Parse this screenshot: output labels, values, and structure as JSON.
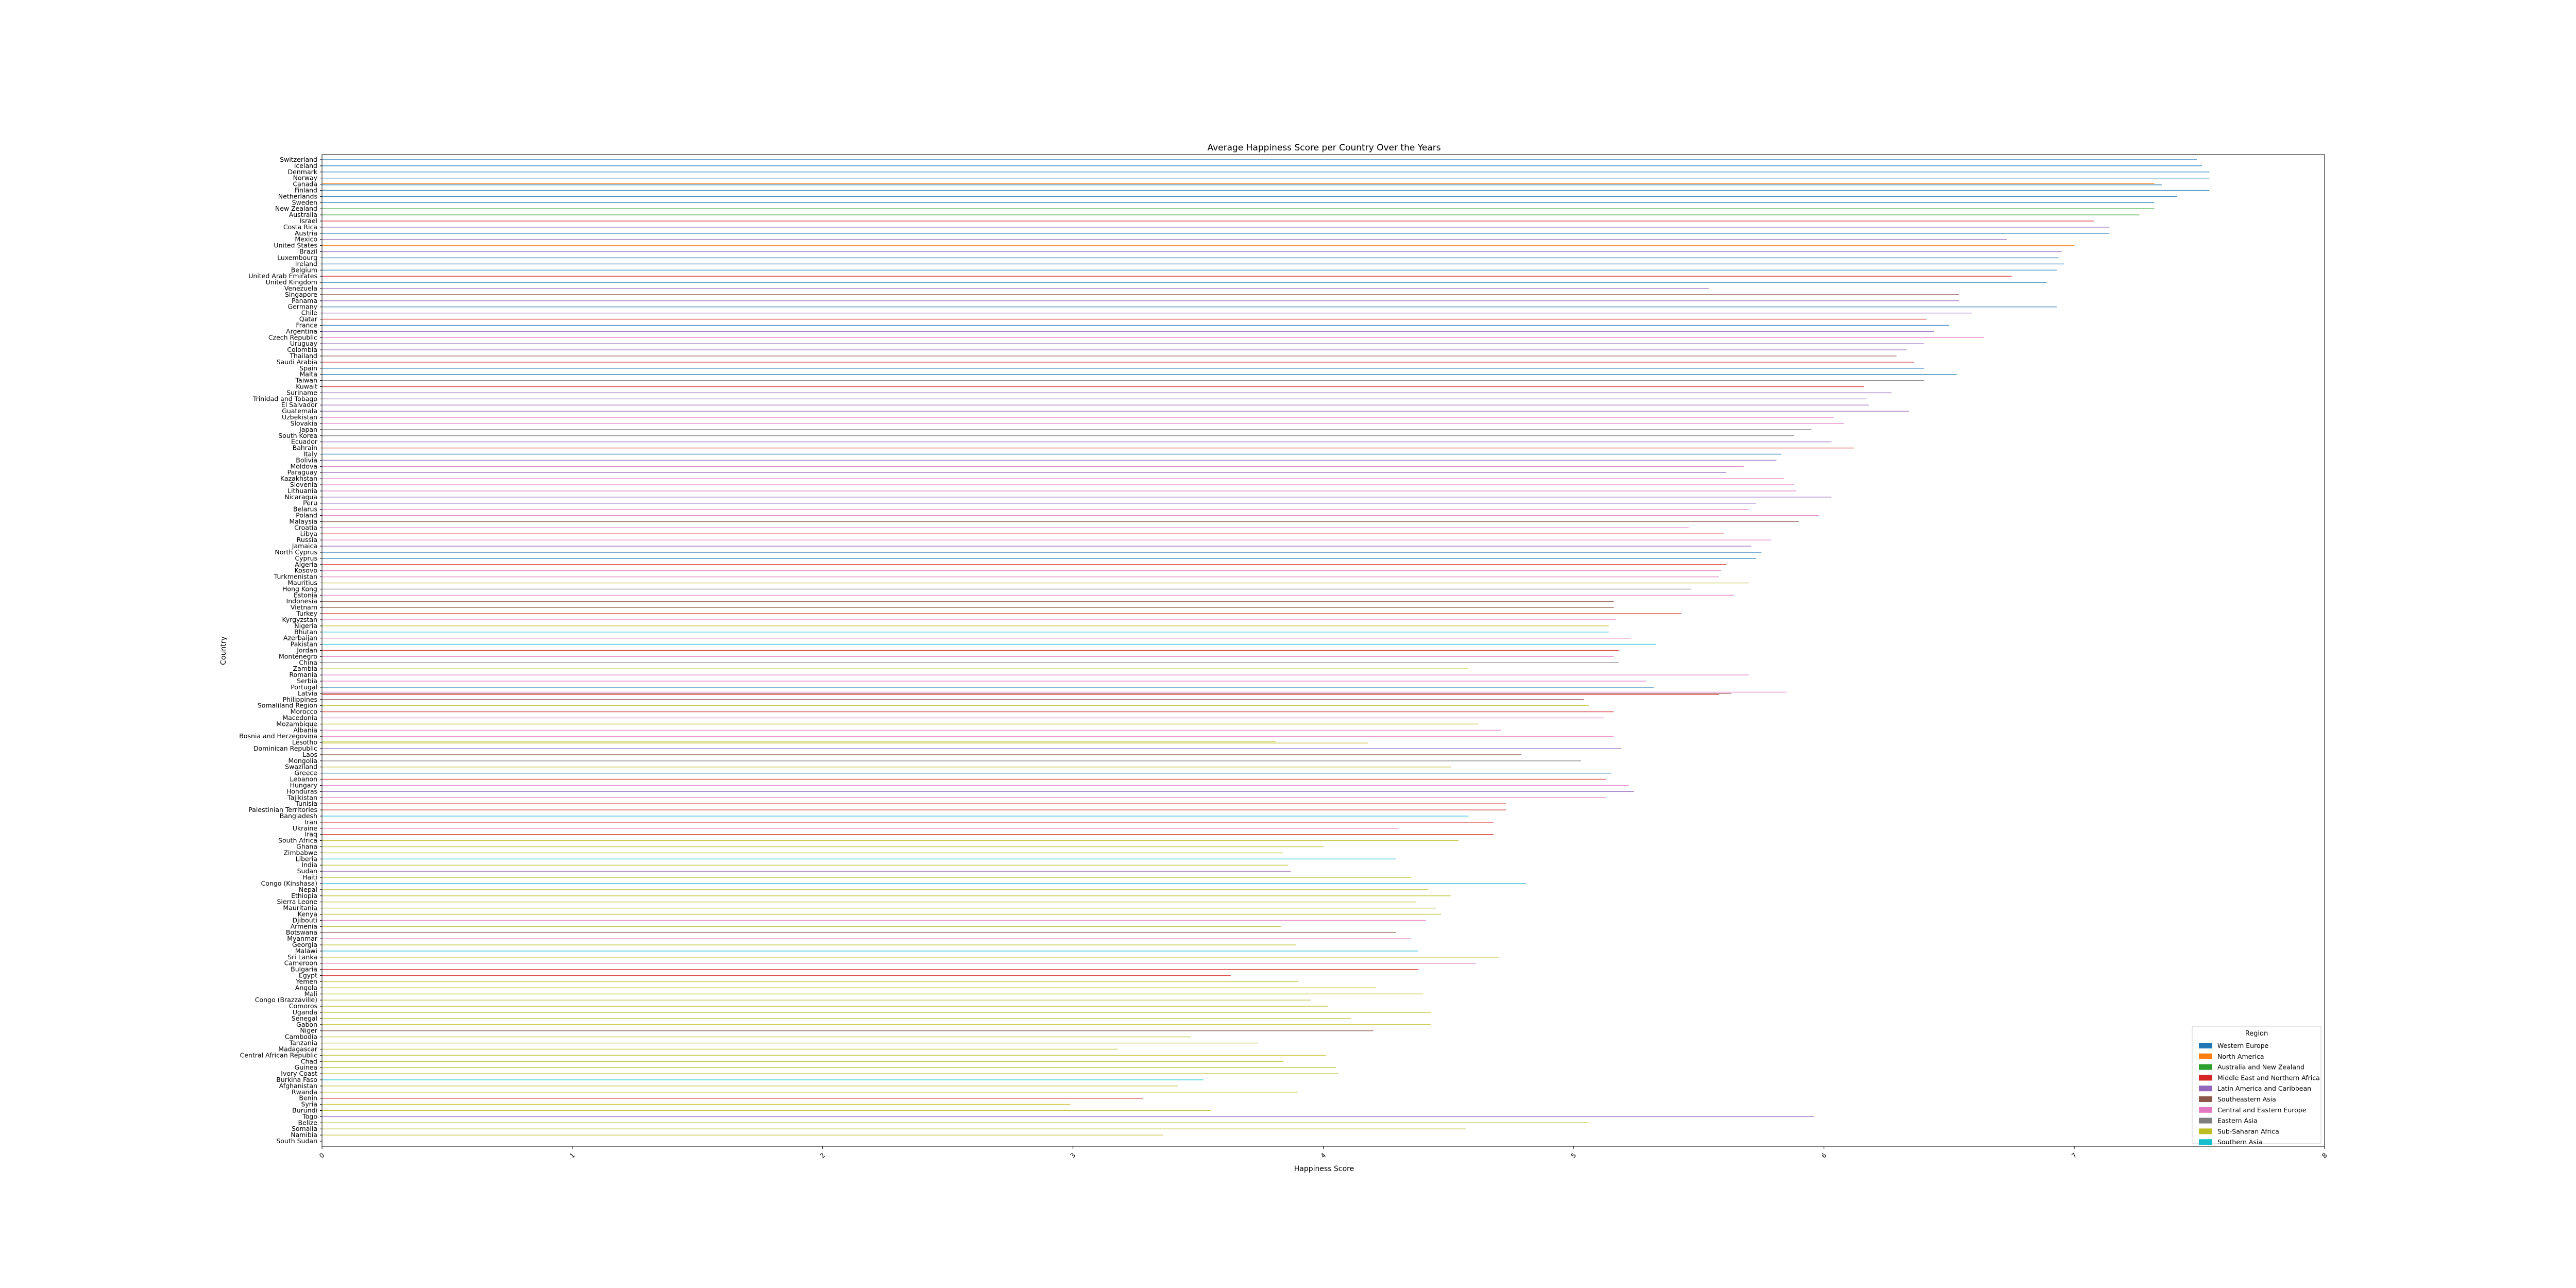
{
  "chart_data": {
    "type": "bar",
    "orientation": "horizontal",
    "title": "Average Happiness Score per Country Over the Years",
    "xlabel": "Happiness Score",
    "ylabel": "Country",
    "xlim": [
      0,
      8
    ],
    "xticks": [
      "0",
      "1",
      "2",
      "3",
      "4",
      "5",
      "6",
      "7",
      "8"
    ],
    "grid": false,
    "legend_title": "Region",
    "legend_position": "lower-right",
    "series": [
      {
        "name": "Western Europe",
        "color": "#1f77b4"
      },
      {
        "name": "North America",
        "color": "#ff7f0e"
      },
      {
        "name": "Australia and New Zealand",
        "color": "#2ca02c"
      },
      {
        "name": "Middle East and Northern Africa",
        "color": "#d62728"
      },
      {
        "name": "Latin America and Caribbean",
        "color": "#9467bd"
      },
      {
        "name": "Southeastern Asia",
        "color": "#8c564b"
      },
      {
        "name": "Central and Eastern Europe",
        "color": "#e377c2"
      },
      {
        "name": "Eastern Asia",
        "color": "#7f7f7f"
      },
      {
        "name": "Sub-Saharan Africa",
        "color": "#bcbd22"
      },
      {
        "name": "Southern Asia",
        "color": "#17becf"
      }
    ],
    "categories": [
      "Switzerland",
      "Iceland",
      "Denmark",
      "Norway",
      "Canada",
      "Finland",
      "Netherlands",
      "Sweden",
      "New Zealand",
      "Australia",
      "Israel",
      "Costa Rica",
      "Austria",
      "Mexico",
      "United States",
      "Brazil",
      "Luxembourg",
      "Ireland",
      "Belgium",
      "United Arab Emirates",
      "United Kingdom",
      "Venezuela",
      "Singapore",
      "Panama",
      "Germany",
      "Chile",
      "Qatar",
      "France",
      "Argentina",
      "Czech Republic",
      "Uruguay",
      "Colombia",
      "Thailand",
      "Saudi Arabia",
      "Spain",
      "Malta",
      "Taiwan",
      "Kuwait",
      "Suriname",
      "Trinidad and Tobago",
      "El Salvador",
      "Guatemala",
      "Uzbekistan",
      "Slovakia",
      "Japan",
      "South Korea",
      "Ecuador",
      "Bahrain",
      "Italy",
      "Bolivia",
      "Moldova",
      "Paraguay",
      "Kazakhstan",
      "Slovenia",
      "Lithuania",
      "Nicaragua",
      "Peru",
      "Belarus",
      "Poland",
      "Malaysia",
      "Croatia",
      "Libya",
      "Russia",
      "Jamaica",
      "North Cyprus",
      "Cyprus",
      "Algeria",
      "Kosovo",
      "Turkmenistan",
      "Mauritius",
      "Hong Kong",
      "Estonia",
      "Indonesia",
      "Vietnam",
      "Turkey",
      "Kyrgyzstan",
      "Nigeria",
      "Bhutan",
      "Azerbaijan",
      "Pakistan",
      "Jordan",
      "Montenegro",
      "China",
      "Zambia",
      "Romania",
      "Serbia",
      "Portugal",
      "Latvia",
      "Philippines",
      "Somaliland Region",
      "Morocco",
      "Macedonia",
      "Mozambique",
      "Albania",
      "Bosnia and Herzegovina",
      "Lesotho",
      "Dominican Republic",
      "Laos",
      "Mongolia",
      "Swaziland",
      "Greece",
      "Lebanon",
      "Hungary",
      "Honduras",
      "Tajikistan",
      "Tunisia",
      "Palestinian Territories",
      "Bangladesh",
      "Iran",
      "Ukraine",
      "Iraq",
      "South Africa",
      "Ghana",
      "Zimbabwe",
      "Liberia",
      "India",
      "Sudan",
      "Haiti",
      "Congo (Kinshasa)",
      "Nepal",
      "Ethiopia",
      "Sierra Leone",
      "Mauritania",
      "Kenya",
      "Djibouti",
      "Armenia",
      "Botswana",
      "Myanmar",
      "Georgia",
      "Malawi",
      "Sri Lanka",
      "Cameroon",
      "Bulgaria",
      "Egypt",
      "Yemen",
      "Angola",
      "Mali",
      "Congo (Brazzaville)",
      "Comoros",
      "Uganda",
      "Senegal",
      "Gabon",
      "Niger",
      "Cambodia",
      "Tanzania",
      "Madagascar",
      "Central African Republic",
      "Chad",
      "Guinea",
      "Ivory Coast",
      "Burkina Faso",
      "Afghanistan",
      "Rwanda",
      "Benin",
      "Syria",
      "Burundi",
      "Togo",
      "Belize",
      "Somalia",
      "Namibia",
      "South Sudan"
    ],
    "bars": [
      [
        [
          0,
          7.49
        ]
      ],
      [
        [
          0,
          7.51
        ]
      ],
      [
        [
          0,
          7.54
        ]
      ],
      [
        [
          0,
          7.54
        ]
      ],
      [
        [
          1,
          7.32
        ],
        [
          0,
          7.35
        ]
      ],
      [
        [
          0,
          7.54
        ]
      ],
      [
        [
          0,
          7.41
        ]
      ],
      [
        [
          0,
          7.32
        ]
      ],
      [
        [
          2,
          7.32
        ]
      ],
      [
        [
          2,
          7.26
        ]
      ],
      [
        [
          3,
          7.08
        ]
      ],
      [
        [
          4,
          7.14
        ]
      ],
      [
        [
          0,
          7.14
        ]
      ],
      [
        [
          4,
          6.73
        ]
      ],
      [
        [
          1,
          7.0
        ]
      ],
      [
        [
          4,
          6.95
        ]
      ],
      [
        [
          0,
          6.94
        ]
      ],
      [
        [
          0,
          6.96
        ]
      ],
      [
        [
          0,
          6.93
        ]
      ],
      [
        [
          3,
          6.75
        ]
      ],
      [
        [
          0,
          6.89
        ]
      ],
      [
        [
          4,
          5.54
        ]
      ],
      [
        [
          5,
          6.54
        ]
      ],
      [
        [
          4,
          6.54
        ]
      ],
      [
        [
          0,
          6.93
        ]
      ],
      [
        [
          4,
          6.59
        ]
      ],
      [
        [
          3,
          6.41
        ]
      ],
      [
        [
          0,
          6.5
        ]
      ],
      [
        [
          4,
          6.44
        ]
      ],
      [
        [
          6,
          6.64
        ]
      ],
      [
        [
          4,
          6.4
        ]
      ],
      [
        [
          4,
          6.33
        ]
      ],
      [
        [
          5,
          6.29
        ]
      ],
      [
        [
          3,
          6.36
        ]
      ],
      [
        [
          0,
          6.4
        ]
      ],
      [
        [
          0,
          6.53
        ]
      ],
      [
        [
          7,
          6.4
        ]
      ],
      [
        [
          3,
          6.16
        ]
      ],
      [
        [
          4,
          6.27
        ]
      ],
      [
        [
          4,
          6.17
        ]
      ],
      [
        [
          4,
          6.18
        ]
      ],
      [
        [
          4,
          6.34
        ]
      ],
      [
        [
          6,
          6.04
        ]
      ],
      [
        [
          6,
          6.08
        ]
      ],
      [
        [
          7,
          5.95
        ]
      ],
      [
        [
          7,
          5.88
        ]
      ],
      [
        [
          4,
          6.03
        ]
      ],
      [
        [
          3,
          6.12
        ]
      ],
      [
        [
          0,
          5.83
        ]
      ],
      [
        [
          4,
          5.81
        ]
      ],
      [
        [
          6,
          5.68
        ]
      ],
      [
        [
          4,
          5.61
        ]
      ],
      [
        [
          6,
          5.84
        ]
      ],
      [
        [
          6,
          5.88
        ]
      ],
      [
        [
          6,
          5.89
        ]
      ],
      [
        [
          4,
          6.03
        ]
      ],
      [
        [
          4,
          5.73
        ]
      ],
      [
        [
          6,
          5.7
        ]
      ],
      [
        [
          6,
          5.98
        ]
      ],
      [
        [
          5,
          5.9
        ]
      ],
      [
        [
          6,
          5.46
        ]
      ],
      [
        [
          3,
          5.6
        ]
      ],
      [
        [
          6,
          5.79
        ]
      ],
      [
        [
          4,
          5.71
        ]
      ],
      [
        [
          0,
          5.75
        ]
      ],
      [
        [
          0,
          5.73
        ]
      ],
      [
        [
          3,
          5.61
        ]
      ],
      [
        [
          6,
          5.59
        ]
      ],
      [
        [
          6,
          5.58
        ]
      ],
      [
        [
          8,
          5.7
        ]
      ],
      [
        [
          7,
          5.47
        ]
      ],
      [
        [
          6,
          5.64
        ]
      ],
      [
        [
          5,
          5.16
        ]
      ],
      [
        [
          5,
          5.16
        ]
      ],
      [
        [
          3,
          5.43
        ]
      ],
      [
        [
          6,
          5.17
        ]
      ],
      [
        [
          8,
          5.14
        ]
      ],
      [
        [
          9,
          5.14
        ]
      ],
      [
        [
          6,
          5.23
        ]
      ],
      [
        [
          9,
          5.33
        ]
      ],
      [
        [
          3,
          5.18
        ]
      ],
      [
        [
          6,
          5.16
        ]
      ],
      [
        [
          7,
          5.18
        ]
      ],
      [
        [
          8,
          4.58
        ]
      ],
      [
        [
          6,
          5.7
        ]
      ],
      [
        [
          6,
          5.29
        ]
      ],
      [
        [
          0,
          5.32
        ]
      ],
      [
        [
          6,
          5.85
        ],
        [
          5,
          5.63
        ],
        [
          3,
          5.58
        ]
      ],
      [
        [
          5,
          5.04
        ]
      ],
      [
        [
          8,
          5.06
        ]
      ],
      [
        [
          3,
          5.16
        ]
      ],
      [
        [
          6,
          5.12
        ]
      ],
      [
        [
          8,
          4.62
        ]
      ],
      [
        [
          6,
          4.71
        ]
      ],
      [
        [
          6,
          5.16
        ]
      ],
      [
        [
          8,
          3.81
        ],
        [
          8,
          4.18
        ]
      ],
      [
        [
          4,
          5.19
        ]
      ],
      [
        [
          5,
          4.79
        ]
      ],
      [
        [
          7,
          5.03
        ]
      ],
      [
        [
          8,
          4.51
        ]
      ],
      [
        [
          0,
          5.15
        ]
      ],
      [
        [
          3,
          5.13
        ]
      ],
      [
        [
          6,
          5.22
        ]
      ],
      [
        [
          4,
          5.24
        ]
      ],
      [
        [
          6,
          5.13
        ]
      ],
      [
        [
          3,
          4.73
        ]
      ],
      [
        [
          3,
          4.73
        ]
      ],
      [
        [
          9,
          4.58
        ]
      ],
      [
        [
          3,
          4.68
        ]
      ],
      [
        [
          6,
          4.3
        ]
      ],
      [
        [
          3,
          4.68
        ]
      ],
      [
        [
          8,
          4.54
        ]
      ],
      [
        [
          8,
          4.0
        ]
      ],
      [
        [
          8,
          3.84
        ]
      ],
      [
        [
          9,
          4.29
        ]
      ],
      [
        [
          8,
          3.86
        ]
      ],
      [
        [
          4,
          3.87
        ]
      ],
      [
        [
          8,
          4.35
        ]
      ],
      [
        [
          9,
          4.81
        ]
      ],
      [
        [
          8,
          4.42
        ]
      ],
      [
        [
          8,
          4.51
        ]
      ],
      [
        [
          8,
          4.37
        ]
      ],
      [
        [
          8,
          4.45
        ]
      ],
      [
        [
          8,
          4.47
        ]
      ],
      [
        [
          6,
          4.41
        ]
      ],
      [
        [
          8,
          3.83
        ]
      ],
      [
        [
          5,
          4.29
        ]
      ],
      [
        [
          6,
          4.35
        ]
      ],
      [
        [
          8,
          3.89
        ]
      ],
      [
        [
          9,
          4.38
        ]
      ],
      [
        [
          8,
          4.7
        ]
      ],
      [
        [
          6,
          4.61
        ]
      ],
      [
        [
          3,
          4.38
        ]
      ],
      [
        [
          3,
          3.63
        ]
      ],
      [
        [
          8,
          3.9
        ]
      ],
      [
        [
          8,
          4.21
        ]
      ],
      [
        [
          8,
          4.4
        ]
      ],
      [
        [
          8,
          3.95
        ]
      ],
      [
        [
          8,
          4.02
        ]
      ],
      [
        [
          8,
          4.43
        ]
      ],
      [
        [
          8,
          4.11
        ]
      ],
      [
        [
          8,
          4.43
        ]
      ],
      [
        [
          5,
          4.2
        ]
      ],
      [
        [
          8,
          3.47
        ]
      ],
      [
        [
          8,
          3.74
        ]
      ],
      [
        [
          8,
          3.18
        ]
      ],
      [
        [
          8,
          4.01
        ]
      ],
      [
        [
          8,
          3.84
        ]
      ],
      [
        [
          8,
          4.05
        ]
      ],
      [
        [
          8,
          4.06
        ]
      ],
      [
        [
          9,
          3.52
        ]
      ],
      [
        [
          8,
          3.42
        ]
      ],
      [
        [
          8,
          3.9
        ]
      ],
      [
        [
          3,
          3.28
        ]
      ],
      [
        [
          8,
          2.99
        ]
      ],
      [
        [
          8,
          3.55
        ]
      ],
      [
        [
          4,
          5.96
        ]
      ],
      [
        [
          8,
          5.06
        ]
      ],
      [
        [
          8,
          4.57
        ]
      ],
      [
        [
          8,
          3.36
        ]
      ]
    ]
  }
}
